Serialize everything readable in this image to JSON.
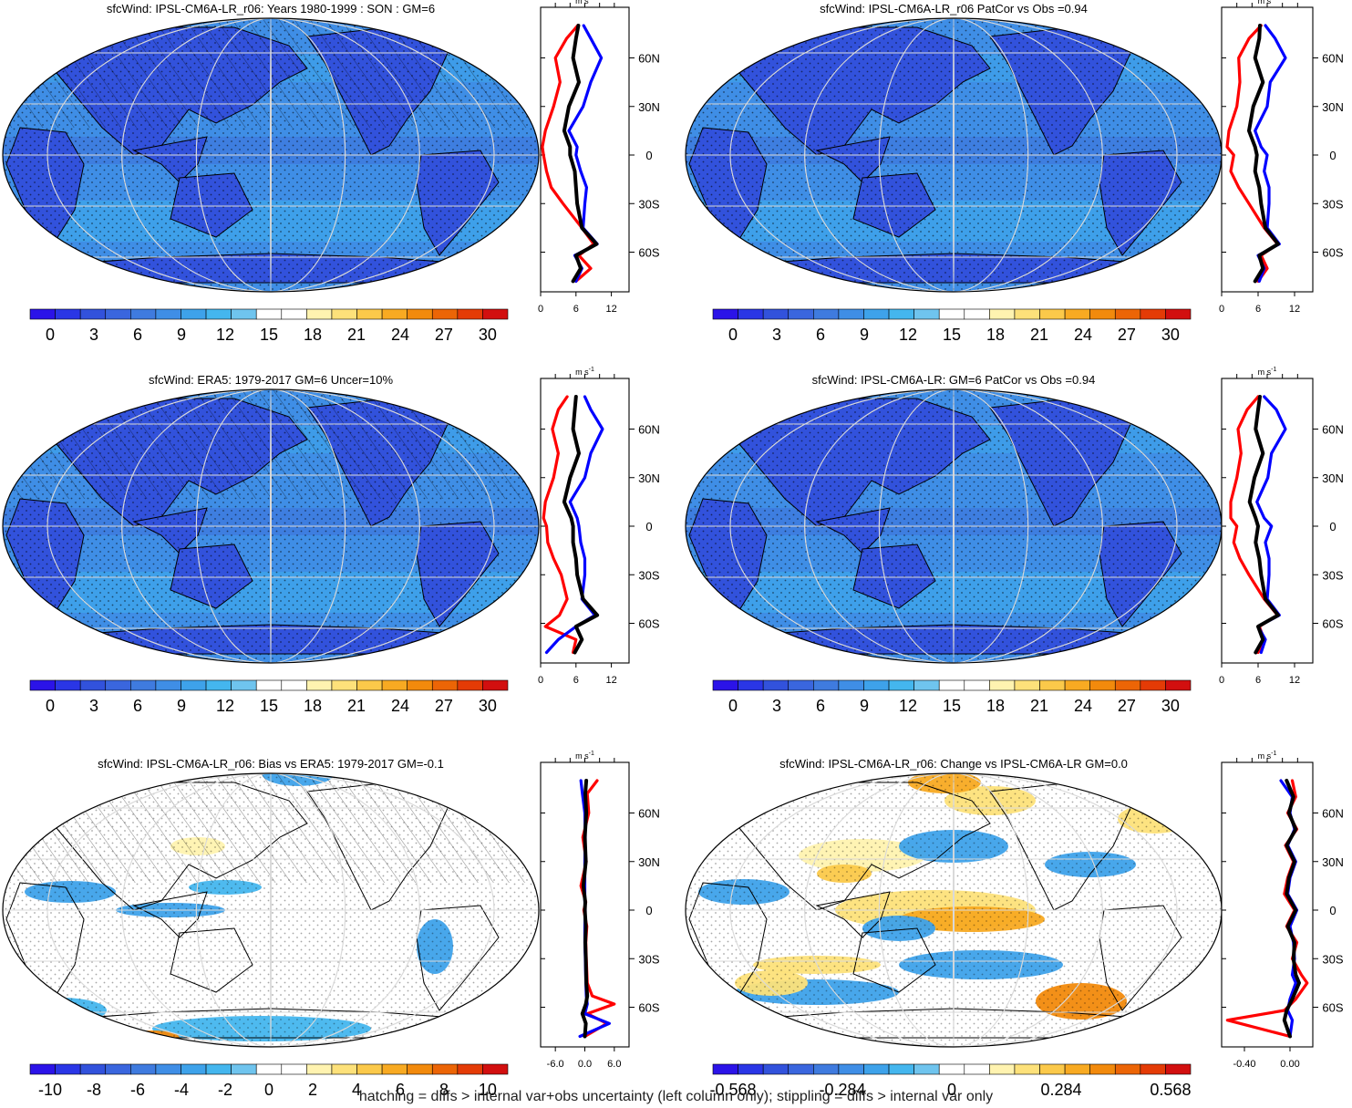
{
  "footer": "hatching = diffs > internal var+obs uncertainty (left column only); stippling = diffs > internal var only",
  "palette": [
    "#2b13e8",
    "#2a36e6",
    "#3252dc",
    "#3a66de",
    "#3f7bdf",
    "#3f8ee6",
    "#3ea2ea",
    "#44b6ee",
    "#6fc4ee",
    "#ffffff",
    "#ffffff",
    "#fff3b0",
    "#fde17a",
    "#fbc94a",
    "#f8aa22",
    "#f28a0c",
    "#ec6506",
    "#e43b06",
    "#d20f0f"
  ],
  "line_colors": {
    "model": "#ff0000",
    "obs": "#0000ff",
    "mean": "#000000"
  },
  "lat_ticks": [
    "60N",
    "30N",
    "0",
    "30S",
    "60S"
  ],
  "unit_label": "m s",
  "unit_exp": "-1",
  "chart_data": [
    {
      "type": "heatmap",
      "panel": "top-left",
      "title": "sfcWind: IPSL-CM6A-LR_r06: Years 1980-1999 : SON : GM=6",
      "colorbar_ticks": [
        "0",
        "3",
        "6",
        "9",
        "12",
        "15",
        "18",
        "21",
        "24",
        "27",
        "30"
      ],
      "profile_xticks": [
        "0",
        "6",
        "12"
      ],
      "profile_xlim": [
        0,
        15
      ],
      "profile_series": [
        {
          "role": "model",
          "lat": [
            80,
            72,
            60,
            45,
            30,
            15,
            5,
            0,
            -10,
            -20,
            -30,
            -45,
            -55,
            -62,
            -70,
            -78
          ],
          "values": [
            6.3,
            4.4,
            2.5,
            3.3,
            2.2,
            0.8,
            0.3,
            0.5,
            1.0,
            1.8,
            3.8,
            7.0,
            9.0,
            6.5,
            8.5,
            6.0
          ]
        },
        {
          "role": "obs",
          "lat": [
            80,
            72,
            60,
            45,
            30,
            15,
            5,
            0,
            -10,
            -20,
            -30,
            -45,
            -55,
            -62,
            -70,
            -78
          ],
          "values": [
            7.3,
            8.5,
            10.3,
            8.5,
            7.2,
            4.8,
            6.2,
            6.0,
            6.8,
            7.8,
            7.5,
            7.2,
            9.6,
            5.8,
            7.0,
            6.0
          ]
        },
        {
          "role": "mean",
          "lat": [
            80,
            72,
            60,
            45,
            30,
            15,
            5,
            0,
            -10,
            -20,
            -30,
            -45,
            -55,
            -62,
            -70,
            -78
          ],
          "values": [
            6.4,
            6.0,
            5.5,
            6.5,
            4.8,
            4.0,
            5.0,
            5.0,
            5.8,
            6.0,
            6.2,
            7.0,
            9.5,
            6.0,
            6.8,
            5.5
          ]
        }
      ]
    },
    {
      "type": "heatmap",
      "panel": "top-right",
      "title": "sfcWind: IPSL-CM6A-LR_r06 PatCor vs Obs =0.94",
      "colorbar_ticks": [
        "0",
        "3",
        "6",
        "9",
        "12",
        "15",
        "18",
        "21",
        "24",
        "27",
        "30"
      ],
      "profile_xticks": [
        "0",
        "6",
        "12"
      ],
      "profile_xlim": [
        0,
        15
      ],
      "profile_series": [
        {
          "role": "model",
          "lat": [
            80,
            72,
            60,
            45,
            30,
            15,
            5,
            0,
            -10,
            -20,
            -30,
            -45,
            -55,
            -62,
            -70,
            -78
          ],
          "values": [
            6.5,
            4.5,
            2.8,
            3.0,
            2.5,
            1.2,
            0.9,
            2.0,
            1.5,
            2.8,
            4.5,
            7.0,
            9.2,
            6.5,
            7.5,
            6.0
          ]
        },
        {
          "role": "obs",
          "lat": [
            80,
            72,
            60,
            45,
            30,
            15,
            5,
            0,
            -10,
            -20,
            -30,
            -45,
            -55,
            -62,
            -70,
            -78
          ],
          "values": [
            7.2,
            8.8,
            10.5,
            8.0,
            7.5,
            5.5,
            6.5,
            7.5,
            7.0,
            7.8,
            7.8,
            7.5,
            9.5,
            6.0,
            7.0,
            6.2
          ]
        },
        {
          "role": "mean",
          "lat": [
            80,
            72,
            60,
            45,
            30,
            15,
            5,
            0,
            -10,
            -20,
            -30,
            -45,
            -55,
            -62,
            -70,
            -78
          ],
          "values": [
            6.3,
            6.2,
            5.5,
            6.8,
            5.2,
            4.5,
            5.5,
            5.8,
            5.5,
            6.2,
            6.5,
            7.2,
            9.3,
            6.2,
            6.8,
            5.5
          ]
        }
      ]
    },
    {
      "type": "heatmap",
      "panel": "middle-left",
      "title": "sfcWind: ERA5: 1979-2017 GM=6 Uncer=10%",
      "colorbar_ticks": [
        "0",
        "3",
        "6",
        "9",
        "12",
        "15",
        "18",
        "21",
        "24",
        "27",
        "30"
      ],
      "profile_xticks": [
        "0",
        "6",
        "12"
      ],
      "profile_xlim": [
        0,
        15
      ],
      "profile_series": [
        {
          "role": "model",
          "lat": [
            80,
            72,
            60,
            45,
            30,
            15,
            5,
            0,
            -10,
            -20,
            -30,
            -45,
            -55,
            -62,
            -70,
            -78
          ],
          "values": [
            4.5,
            3.0,
            2.0,
            3.0,
            2.2,
            0.8,
            0.5,
            1.0,
            1.2,
            2.2,
            3.5,
            4.5,
            3.2,
            0.8,
            6.0,
            5.5
          ]
        },
        {
          "role": "obs",
          "lat": [
            80,
            72,
            60,
            45,
            30,
            15,
            5,
            0,
            -10,
            -20,
            -30,
            -45,
            -55,
            -62,
            -70,
            -78
          ],
          "values": [
            7.5,
            8.5,
            10.5,
            8.5,
            7.5,
            5.0,
            6.2,
            6.5,
            6.8,
            7.5,
            7.5,
            7.0,
            9.2,
            6.0,
            3.0,
            1.0
          ]
        },
        {
          "role": "mean",
          "lat": [
            80,
            72,
            60,
            45,
            30,
            15,
            5,
            0,
            -10,
            -20,
            -30,
            -45,
            -55,
            -62,
            -70,
            -78
          ],
          "values": [
            6.0,
            5.8,
            5.5,
            6.5,
            5.0,
            4.0,
            5.2,
            5.5,
            5.5,
            6.0,
            6.2,
            7.2,
            9.6,
            6.0,
            7.0,
            5.8
          ]
        }
      ]
    },
    {
      "type": "heatmap",
      "panel": "middle-right",
      "title": "sfcWind: IPSL-CM6A-LR: GM=6 PatCor vs Obs =0.94",
      "colorbar_ticks": [
        "0",
        "3",
        "6",
        "9",
        "12",
        "15",
        "18",
        "21",
        "24",
        "27",
        "30"
      ],
      "profile_xticks": [
        "0",
        "6",
        "12"
      ],
      "profile_xlim": [
        0,
        15
      ],
      "profile_series": [
        {
          "role": "model",
          "lat": [
            80,
            72,
            60,
            45,
            30,
            15,
            5,
            0,
            -10,
            -20,
            -30,
            -45,
            -55,
            -62,
            -70,
            -78
          ],
          "values": [
            6.0,
            4.2,
            2.7,
            3.2,
            2.5,
            1.5,
            1.5,
            2.5,
            2.0,
            3.0,
            4.5,
            7.0,
            9.2,
            6.2,
            7.0,
            6.0
          ]
        },
        {
          "role": "obs",
          "lat": [
            80,
            72,
            60,
            45,
            30,
            15,
            5,
            0,
            -10,
            -20,
            -30,
            -45,
            -55,
            -62,
            -70,
            -78
          ],
          "values": [
            7.0,
            9.0,
            10.5,
            8.2,
            7.6,
            5.8,
            7.0,
            8.2,
            7.2,
            7.8,
            7.8,
            7.5,
            9.5,
            6.0,
            7.2,
            6.5
          ]
        },
        {
          "role": "mean",
          "lat": [
            80,
            72,
            60,
            45,
            30,
            15,
            5,
            0,
            -10,
            -20,
            -30,
            -45,
            -55,
            -62,
            -70,
            -78
          ],
          "values": [
            6.3,
            6.0,
            5.6,
            6.8,
            5.4,
            4.6,
            5.6,
            6.0,
            5.6,
            6.2,
            6.5,
            7.2,
            9.3,
            6.0,
            6.8,
            5.6
          ]
        }
      ]
    },
    {
      "type": "heatmap",
      "panel": "bottom-left",
      "title": "sfcWind: IPSL-CM6A-LR_r06: Bias vs ERA5: 1979-2017  GM=-0.1",
      "colorbar_ticks": [
        "-10",
        "-8",
        "-6",
        "-4",
        "-2",
        "0",
        "2",
        "4",
        "6",
        "8",
        "10"
      ],
      "profile_xticks": [
        "-6.0",
        "0.0",
        "6.0"
      ],
      "profile_xlim": [
        -9,
        9
      ],
      "profile_series": [
        {
          "role": "model",
          "lat": [
            80,
            72,
            60,
            45,
            30,
            15,
            5,
            0,
            -10,
            -20,
            -30,
            -45,
            -53,
            -58,
            -64,
            -70,
            -78
          ],
          "values": [
            2.5,
            0.5,
            0.8,
            -0.4,
            0.3,
            -0.8,
            0.2,
            -0.2,
            0.4,
            0.2,
            0.3,
            0.5,
            1.5,
            6.0,
            0.5,
            4.5,
            0.0
          ]
        },
        {
          "role": "obs",
          "lat": [
            80,
            72,
            60,
            45,
            30,
            15,
            5,
            0,
            -10,
            -20,
            -30,
            -45,
            -53,
            -58,
            -64,
            -70,
            -78
          ],
          "values": [
            -0.8,
            -0.5,
            0.0,
            0.1,
            0.0,
            0.0,
            0.0,
            0.1,
            0.0,
            0.0,
            0.1,
            0.2,
            0.3,
            0.5,
            0.0,
            5.0,
            -1.0
          ]
        },
        {
          "role": "mean",
          "lat": [
            80,
            72,
            60,
            45,
            30,
            15,
            5,
            0,
            -10,
            -20,
            -30,
            -45,
            -53,
            -58,
            -64,
            -70,
            -78
          ],
          "values": [
            0.3,
            0.1,
            0.3,
            0.0,
            0.2,
            -0.3,
            0.1,
            0.0,
            0.2,
            0.1,
            0.2,
            0.3,
            0.5,
            0.2,
            -0.5,
            0.2,
            0.0
          ]
        }
      ]
    },
    {
      "type": "heatmap",
      "panel": "bottom-right",
      "title": "sfcWind: IPSL-CM6A-LR_r06: Change vs IPSL-CM6A-LR GM=0.0",
      "colorbar_ticks": [
        "-0.568",
        "-0.284",
        "0",
        "0.284",
        "0.568"
      ],
      "profile_xticks": [
        "-0.40",
        "0.00"
      ],
      "profile_xlim": [
        -0.6,
        0.2
      ],
      "profile_series": [
        {
          "role": "model",
          "lat": [
            80,
            70,
            60,
            50,
            40,
            30,
            20,
            10,
            0,
            -10,
            -20,
            -30,
            -40,
            -45,
            -55,
            -62,
            -68,
            -78
          ],
          "values": [
            0.02,
            0.05,
            -0.02,
            0.06,
            -0.04,
            0.03,
            -0.02,
            -0.05,
            0.04,
            -0.03,
            0.06,
            0.02,
            0.1,
            0.15,
            0.05,
            -0.05,
            -0.55,
            0.0
          ]
        },
        {
          "role": "obs",
          "lat": [
            80,
            70,
            60,
            50,
            40,
            30,
            20,
            10,
            0,
            -10,
            -20,
            -30,
            -40,
            -45,
            -55,
            -62,
            -68,
            -78
          ],
          "values": [
            -0.08,
            0.02,
            0.0,
            0.04,
            -0.02,
            0.05,
            0.0,
            -0.02,
            0.06,
            0.0,
            0.03,
            0.04,
            0.02,
            0.05,
            0.0,
            -0.02,
            0.02,
            0.0
          ]
        },
        {
          "role": "mean",
          "lat": [
            80,
            70,
            60,
            50,
            40,
            30,
            20,
            10,
            0,
            -10,
            -20,
            -30,
            -40,
            -45,
            -55,
            -62,
            -68,
            -78
          ],
          "values": [
            -0.03,
            0.03,
            -0.01,
            0.05,
            -0.03,
            0.04,
            -0.01,
            -0.03,
            0.05,
            -0.02,
            0.04,
            0.03,
            0.05,
            0.08,
            0.02,
            -0.03,
            -0.05,
            0.0
          ]
        }
      ]
    }
  ]
}
